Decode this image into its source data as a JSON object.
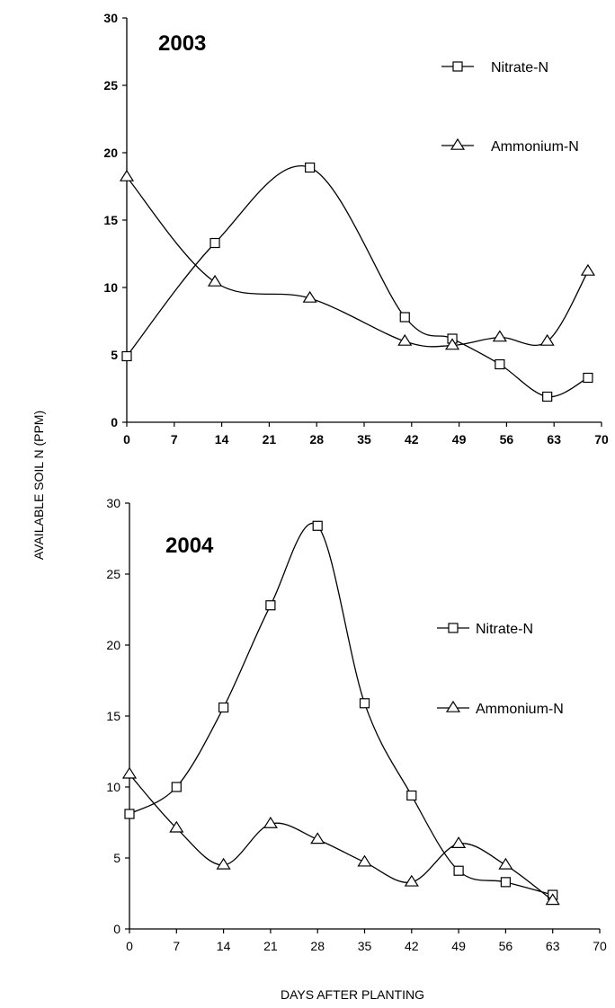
{
  "figure": {
    "ylabel": "AVAILABLE SOIL N (PPM)",
    "xlabel": "DAYS AFTER PLANTING"
  },
  "chart_data": [
    {
      "type": "line",
      "title": "2003",
      "xlim": [
        0,
        70
      ],
      "ylim": [
        0,
        30
      ],
      "xticks": [
        0,
        7,
        14,
        21,
        28,
        35,
        42,
        49,
        56,
        63,
        70
      ],
      "yticks": [
        0,
        5,
        10,
        15,
        20,
        25,
        30
      ],
      "legend_position": "top-right",
      "series": [
        {
          "name": "Nitrate-N",
          "marker": "square",
          "x": [
            0,
            13,
            27,
            41,
            48,
            55,
            62,
            68
          ],
          "y": [
            4.9,
            13.3,
            18.9,
            7.8,
            6.2,
            4.3,
            1.9,
            3.3
          ]
        },
        {
          "name": "Ammonium-N",
          "marker": "triangle",
          "x": [
            0,
            13,
            27,
            41,
            48,
            55,
            62,
            68
          ],
          "y": [
            18.2,
            10.4,
            9.2,
            6.0,
            5.7,
            6.3,
            6.0,
            11.2
          ]
        }
      ]
    },
    {
      "type": "line",
      "title": "2004",
      "xlim": [
        0,
        70
      ],
      "ylim": [
        0,
        30
      ],
      "xticks": [
        0,
        7,
        14,
        21,
        28,
        35,
        42,
        49,
        56,
        63,
        70
      ],
      "yticks": [
        0,
        5,
        10,
        15,
        20,
        25,
        30
      ],
      "legend_position": "right",
      "series": [
        {
          "name": "Nitrate-N",
          "marker": "square",
          "x": [
            0,
            7,
            14,
            21,
            28,
            35,
            42,
            49,
            56,
            63
          ],
          "y": [
            8.1,
            10.0,
            15.6,
            22.8,
            28.4,
            15.9,
            9.4,
            4.1,
            3.3,
            2.4
          ]
        },
        {
          "name": "Ammonium-N",
          "marker": "triangle",
          "x": [
            0,
            7,
            14,
            21,
            28,
            35,
            42,
            49,
            56,
            63
          ],
          "y": [
            10.9,
            7.1,
            4.5,
            7.4,
            6.3,
            4.7,
            3.3,
            6.0,
            4.5,
            2.0
          ]
        }
      ]
    }
  ]
}
